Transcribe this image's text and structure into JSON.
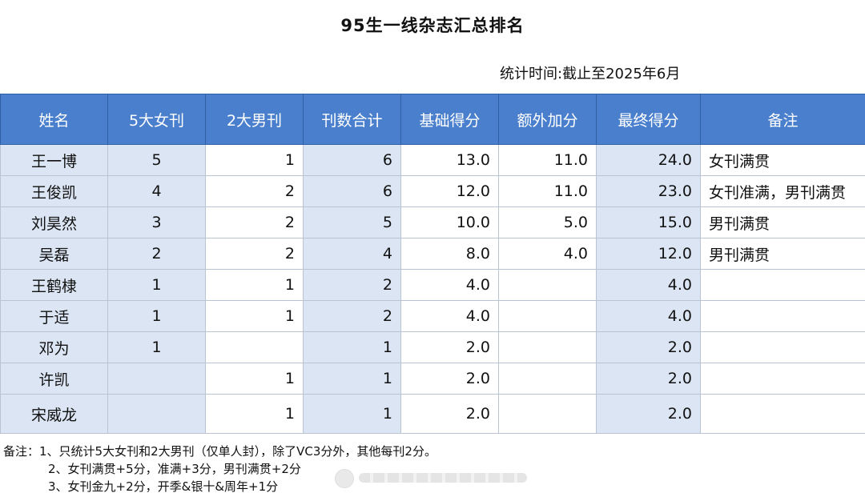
{
  "title": "95生一线杂志汇总排名",
  "stat_time": "统计时间:截止至2025年6月",
  "columns": [
    "姓名",
    "5大女刊",
    "2大男刊",
    "刊数合计",
    "基础得分",
    "额外加分",
    "最终得分",
    "备注"
  ],
  "rows": [
    {
      "name": "王一博",
      "female": "5",
      "male": "1",
      "total": "6",
      "base": "13.0",
      "extra": "11.0",
      "final": "24.0",
      "note": "女刊满贯"
    },
    {
      "name": "王俊凯",
      "female": "4",
      "male": "2",
      "total": "6",
      "base": "12.0",
      "extra": "11.0",
      "final": "23.0",
      "note": "女刊准满，男刊满贯"
    },
    {
      "name": "刘昊然",
      "female": "3",
      "male": "2",
      "total": "5",
      "base": "10.0",
      "extra": "5.0",
      "final": "15.0",
      "note": "男刊满贯"
    },
    {
      "name": "吴磊",
      "female": "2",
      "male": "2",
      "total": "4",
      "base": "8.0",
      "extra": "4.0",
      "final": "12.0",
      "note": "男刊满贯"
    },
    {
      "name": "王鹤棣",
      "female": "1",
      "male": "1",
      "total": "2",
      "base": "4.0",
      "extra": "",
      "final": "4.0",
      "note": ""
    },
    {
      "name": "于适",
      "female": "1",
      "male": "1",
      "total": "2",
      "base": "4.0",
      "extra": "",
      "final": "4.0",
      "note": ""
    },
    {
      "name": "邓为",
      "female": "1",
      "male": "",
      "total": "1",
      "base": "2.0",
      "extra": "",
      "final": "2.0",
      "note": ""
    },
    {
      "name": "许凯",
      "female": "",
      "male": "1",
      "total": "1",
      "base": "2.0",
      "extra": "",
      "final": "2.0",
      "note": ""
    },
    {
      "name": "宋威龙",
      "female": "",
      "male": "1",
      "total": "1",
      "base": "2.0",
      "extra": "",
      "final": "2.0",
      "note": ""
    }
  ],
  "notes": [
    "备注：1、只统计5大女刊和2大男刊（仅单人封），除了VC3分外，其他每刊2分。",
    "2、女刊满贯+5分，准满+3分，男刊满贯+2分",
    "3、女刊金九+2分，开季&银十&周年+1分"
  ],
  "colors": {
    "header_bg": "#4a7fcd",
    "header_text": "#ffffff",
    "shade": "#dbe5f3",
    "grid": "#b9c3d2"
  }
}
